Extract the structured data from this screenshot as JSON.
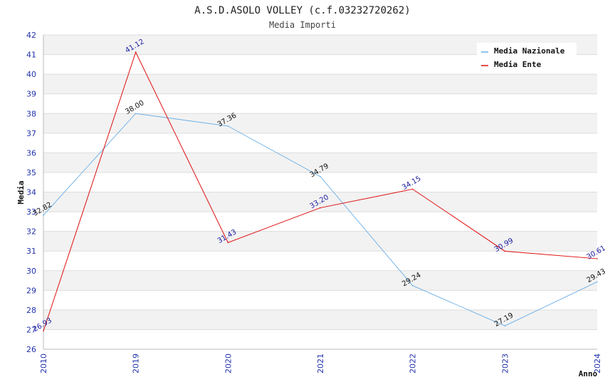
{
  "chart_data": {
    "type": "line",
    "title": "A.S.D.ASOLO VOLLEY (c.f.03232720262)",
    "subtitle": "Media Importi",
    "xlabel": "Anno",
    "ylabel": "Media",
    "ylim": [
      26,
      42
    ],
    "yticks": [
      "26",
      "27",
      "28",
      "29",
      "30",
      "31",
      "32",
      "33",
      "34",
      "35",
      "36",
      "37",
      "38",
      "39",
      "40",
      "41",
      "42"
    ],
    "categories": [
      "2010",
      "2019",
      "2020",
      "2021",
      "2022",
      "2023",
      "2024"
    ],
    "series": [
      {
        "name": "Media Nazionale",
        "color": "#6aaee6",
        "values": [
          32.82,
          38.0,
          37.36,
          34.79,
          29.24,
          27.19,
          29.43
        ],
        "labels": [
          "32.82",
          "38.00",
          "37.36",
          "34.79",
          "29.24",
          "27.19",
          "29.43"
        ]
      },
      {
        "name": "Media Ente",
        "color": "#e01010",
        "values": [
          26.93,
          41.12,
          31.43,
          33.2,
          34.15,
          30.99,
          30.61
        ],
        "labels": [
          "26.93",
          "41.12",
          "31.43",
          "33.20",
          "34.15",
          "30.99",
          "30.61"
        ]
      }
    ],
    "legend": "top-right",
    "grid": true
  }
}
